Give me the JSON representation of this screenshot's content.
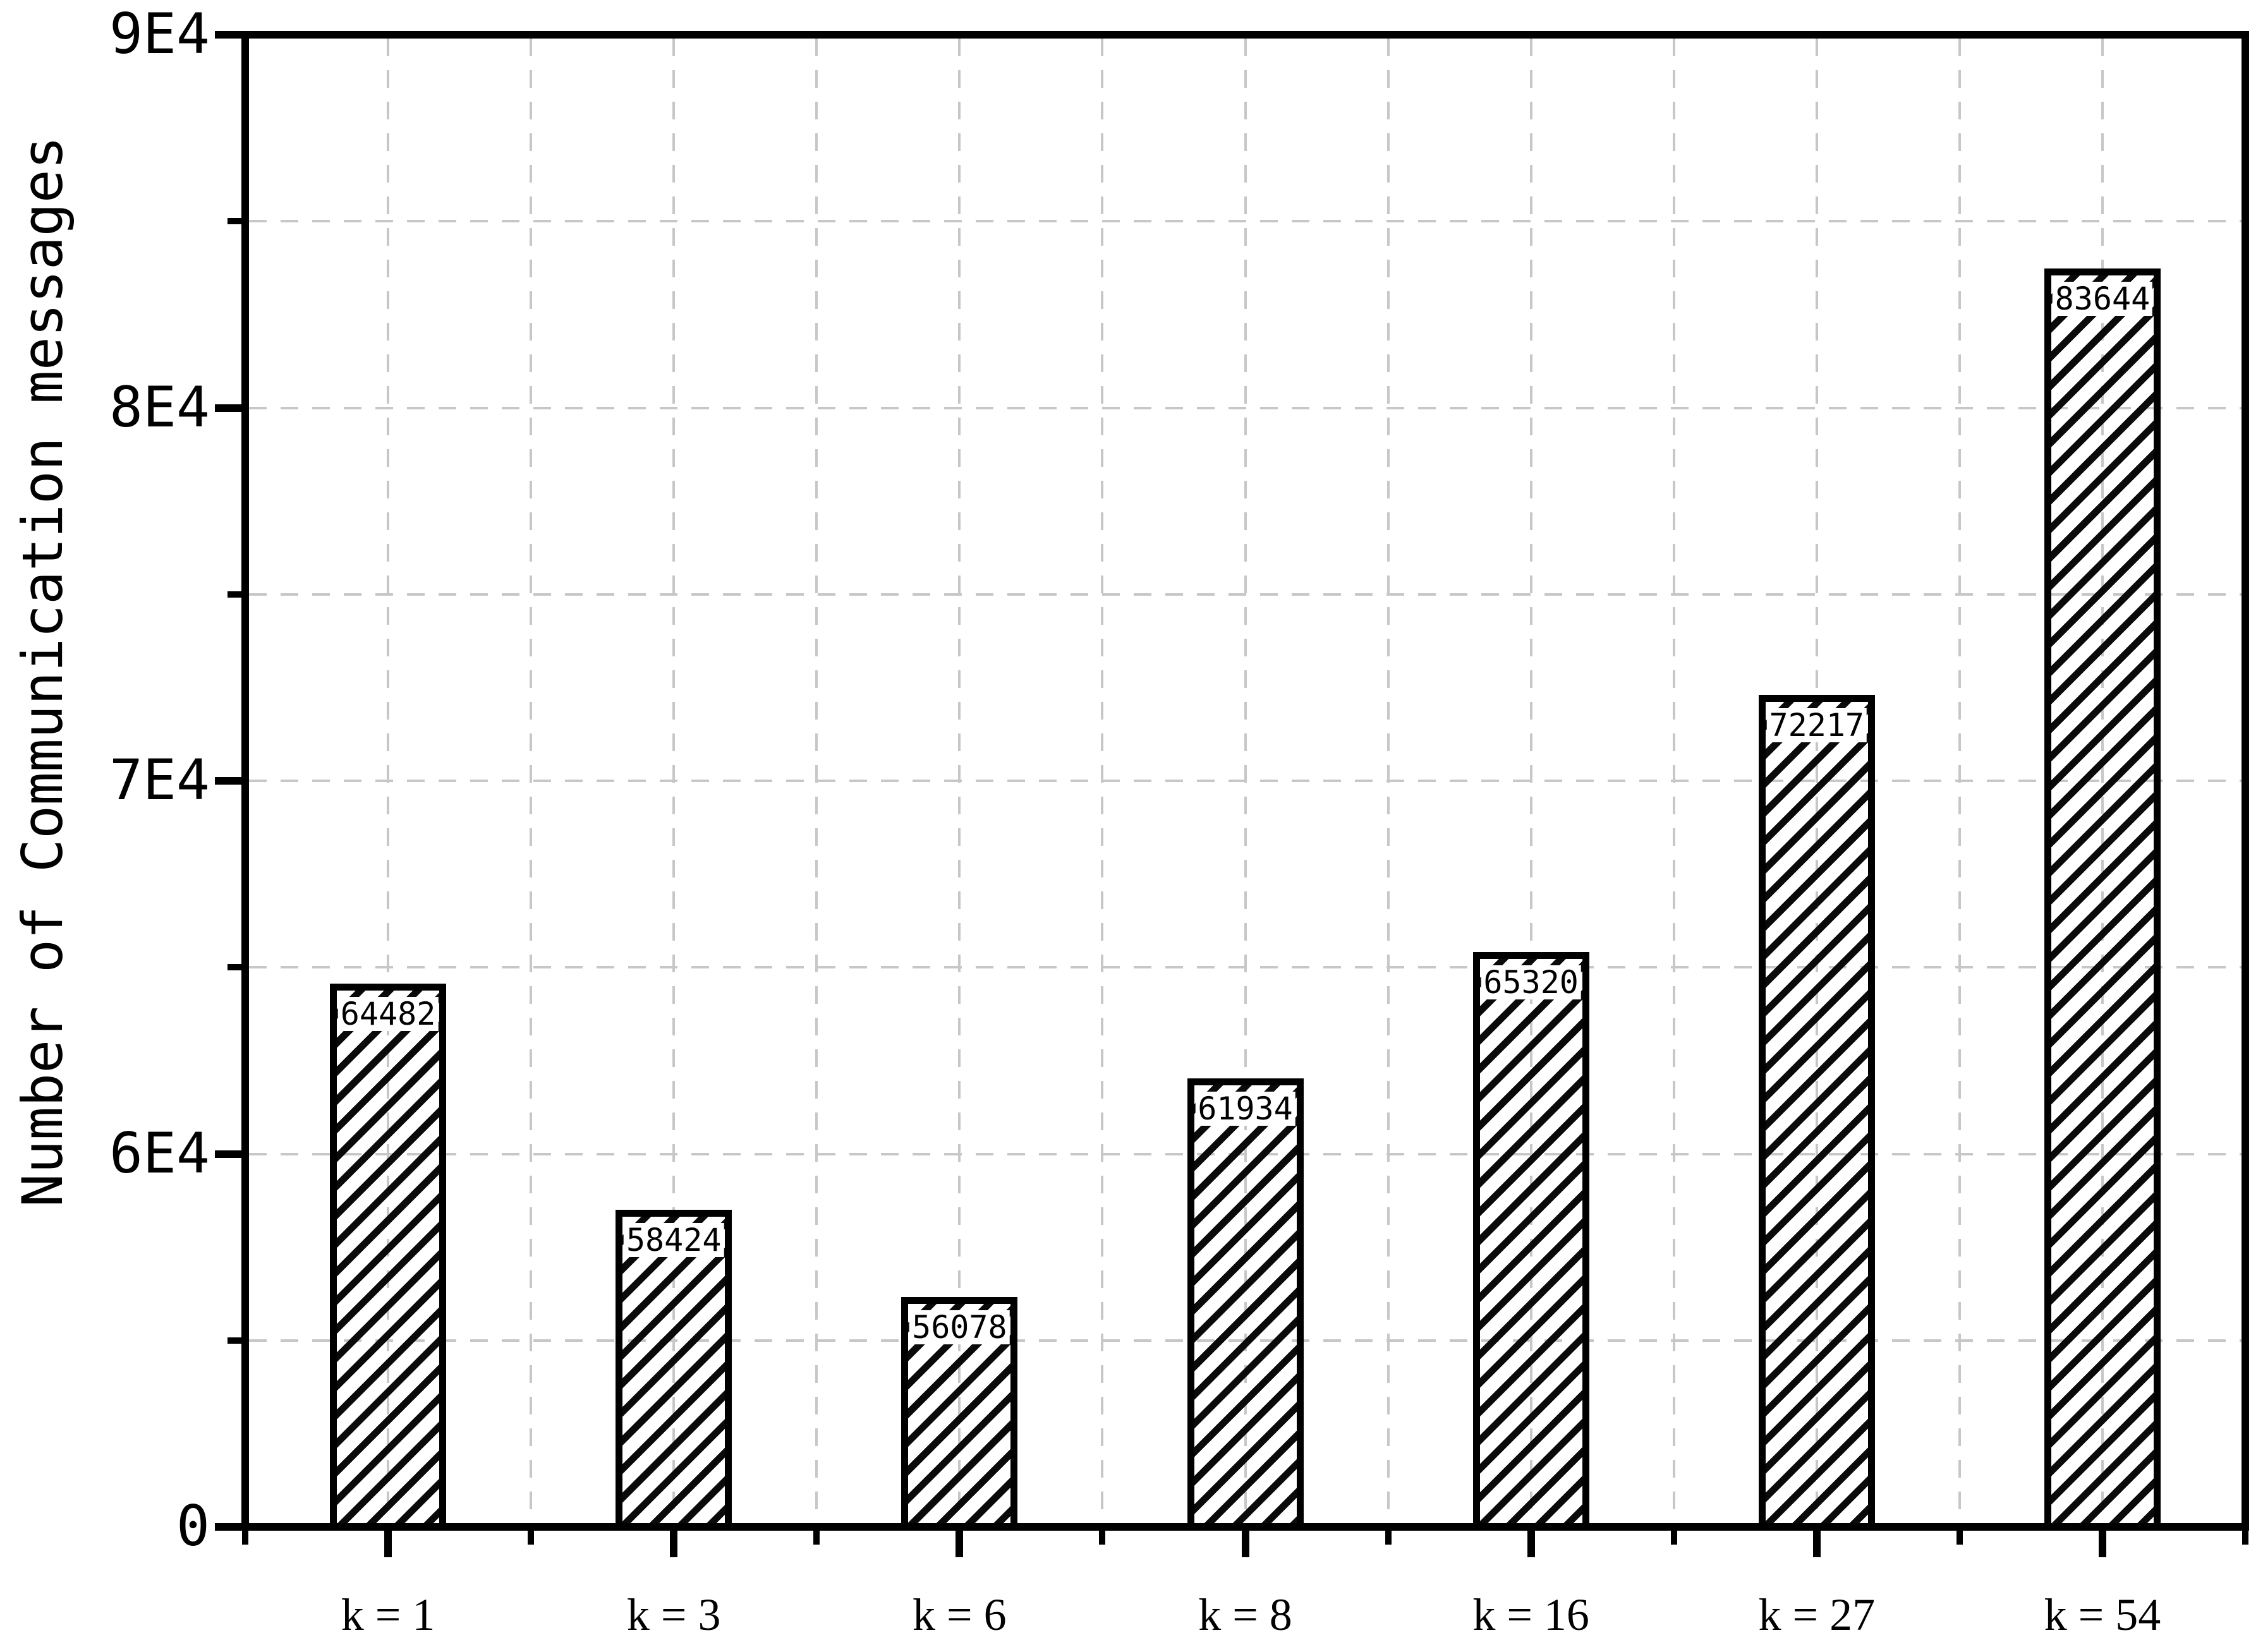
{
  "chart_data": {
    "type": "bar",
    "title": "",
    "xlabel": "",
    "ylabel": "Number of Communication messages",
    "categories": [
      "k = 1",
      "k = 3",
      "k = 6",
      "k = 8",
      "k = 16",
      "k = 27",
      "k = 54"
    ],
    "values": [
      64482,
      58424,
      56078,
      61934,
      65320,
      72217,
      83644
    ],
    "bar_value_labels": [
      "64482",
      "58424",
      "56078",
      "61934",
      "65320",
      "72217",
      "83644"
    ],
    "y_axis": {
      "tick_labels": [
        "0",
        "6E4",
        "7E4",
        "8E4",
        "9E4"
      ],
      "tick_positions": [
        50000,
        60000,
        70000,
        80000,
        90000
      ],
      "minor_tick_positions": [
        55000,
        65000,
        75000,
        85000
      ],
      "range": [
        50000,
        90000
      ],
      "broken_axis_zero_label": "0"
    },
    "grid": {
      "horizontal": true,
      "vertical": true,
      "style": "dashed"
    },
    "legend": null,
    "colors": {
      "bar_fill": "transparent",
      "bar_hatch": "#0a0a0a",
      "bar_border": "#000000",
      "gridline": "#c7c7c7",
      "axis": "#000000",
      "text": "#000000",
      "background": "#ffffff"
    }
  }
}
